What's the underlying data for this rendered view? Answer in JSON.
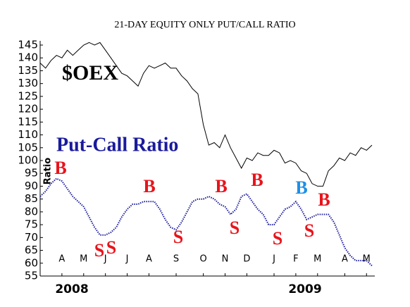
{
  "chart_data": {
    "type": "line",
    "title": "21-DAY EQUITY ONLY PUT/CALL RATIO",
    "y_label": "Ratio",
    "categories": [
      null,
      null,
      null,
      null,
      "A",
      null,
      null,
      null,
      "M",
      null,
      null,
      null,
      "J",
      null,
      null,
      null,
      "J",
      null,
      null,
      null,
      "A",
      null,
      null,
      null,
      null,
      "S",
      null,
      null,
      null,
      null,
      "O",
      null,
      null,
      null,
      "N",
      null,
      null,
      null,
      "D",
      null,
      null,
      null,
      null,
      "J",
      null,
      null,
      null,
      "F",
      null,
      null,
      null,
      "M",
      null,
      null,
      null,
      null,
      "A",
      null,
      null,
      null,
      "M",
      null
    ],
    "year_labels": [
      "2008",
      "2009"
    ],
    "series": [
      {
        "name": "$OEX",
        "color": "#000000",
        "values": [
          138,
          136,
          139,
          141,
          140,
          143,
          141,
          143,
          145,
          146,
          145,
          146,
          143,
          140,
          137,
          134,
          133,
          131,
          129,
          134,
          137,
          136,
          137,
          138,
          136,
          136,
          133,
          131,
          128,
          126,
          114,
          106,
          107,
          105,
          110,
          105,
          101,
          97,
          101,
          100,
          103,
          102,
          102,
          104,
          103,
          99,
          100,
          99,
          96,
          95,
          91,
          90,
          90,
          96,
          98,
          101,
          100,
          103,
          102,
          105,
          104,
          106
        ]
      },
      {
        "name": "Put-Call Ratio",
        "color": "#1a1a9c",
        "values": [
          86,
          88,
          91,
          93,
          92,
          89,
          86,
          84,
          82,
          78,
          74,
          71,
          71,
          72,
          74,
          78,
          81,
          83,
          83,
          84,
          84,
          84,
          81,
          77,
          74,
          73,
          76,
          80,
          84,
          85,
          85,
          86,
          85,
          83,
          82,
          79,
          81,
          86,
          87,
          84,
          81,
          79,
          75,
          75,
          78,
          81,
          82,
          84,
          81,
          77,
          78,
          79,
          79,
          79,
          76,
          71,
          66,
          63,
          61,
          61,
          61,
          59
        ]
      }
    ],
    "annotations": [
      {
        "text": "B",
        "color": "#e8141c"
      },
      {
        "text": "S",
        "color": "#e8141c"
      },
      {
        "text": "S",
        "color": "#e8141c"
      },
      {
        "text": "B",
        "color": "#e8141c"
      },
      {
        "text": "S",
        "color": "#e8141c"
      },
      {
        "text": "B",
        "color": "#e8141c"
      },
      {
        "text": "S",
        "color": "#e8141c"
      },
      {
        "text": "B",
        "color": "#e8141c"
      },
      {
        "text": "S",
        "color": "#e8141c"
      },
      {
        "text": "B",
        "color": "#1e8fe6"
      },
      {
        "text": "S",
        "color": "#e8141c"
      },
      {
        "text": "B",
        "color": "#e8141c"
      }
    ],
    "ylim": [
      55,
      145
    ],
    "yticks": [
      55,
      60,
      65,
      70,
      75,
      80,
      85,
      90,
      95,
      100,
      105,
      110,
      115,
      120,
      125,
      130,
      135,
      140,
      145
    ]
  }
}
